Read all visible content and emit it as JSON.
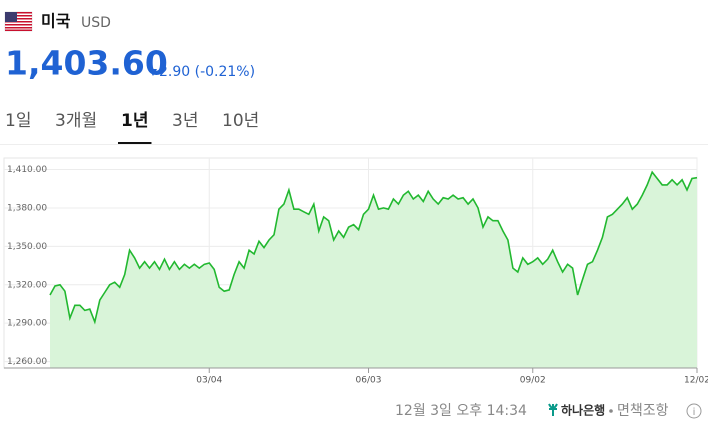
{
  "header": {
    "country": "미국",
    "currency": "USD",
    "price": "1,403.60",
    "change": "2.90 (-0.21%)"
  },
  "tabs": [
    "1일",
    "3개월",
    "1년",
    "3년",
    "10년"
  ],
  "active_tab": 2,
  "chart_data": {
    "type": "area",
    "values": [
      1312,
      1319,
      1320,
      1315,
      1294,
      1304,
      1304,
      1300,
      1301,
      1291,
      1308,
      1314,
      1320,
      1322,
      1318,
      1328,
      1347,
      1341,
      1333,
      1338,
      1333,
      1338,
      1332,
      1340,
      1332,
      1338,
      1332,
      1336,
      1333,
      1336,
      1333,
      1336,
      1337,
      1332,
      1318,
      1315,
      1316,
      1328,
      1338,
      1333,
      1347,
      1344,
      1354,
      1349,
      1355,
      1359,
      1379,
      1383,
      1394,
      1379,
      1379,
      1377,
      1375,
      1383,
      1362,
      1373,
      1370,
      1355,
      1362,
      1357,
      1365,
      1367,
      1363,
      1375,
      1379,
      1390,
      1379,
      1380,
      1379,
      1387,
      1383,
      1390,
      1393,
      1387,
      1390,
      1385,
      1393,
      1387,
      1383,
      1388,
      1387,
      1390,
      1387,
      1388,
      1383,
      1387,
      1380,
      1365,
      1373,
      1370,
      1370,
      1362,
      1355,
      1333,
      1330,
      1341,
      1336,
      1338,
      1341,
      1336,
      1340,
      1347,
      1338,
      1330,
      1336,
      1333,
      1312,
      1324,
      1336,
      1338,
      1347,
      1357,
      1373,
      1375,
      1379,
      1383,
      1388,
      1379,
      1383,
      1390,
      1398,
      1408,
      1403,
      1398,
      1398,
      1402,
      1398,
      1402,
      1394,
      1403,
      1403.6
    ],
    "color": "#22b830",
    "fill": "#d9f4d9",
    "xlim": [
      0,
      130
    ],
    "xticks": [
      {
        "value": 32,
        "label": "03/04"
      },
      {
        "value": 64,
        "label": "06/03"
      },
      {
        "value": 97,
        "label": "09/02"
      },
      {
        "value": 130,
        "label": "12/02"
      }
    ],
    "ylim": [
      1255,
      1419
    ],
    "yticks": [
      {
        "value": 1260,
        "label": "1,260.00"
      },
      {
        "value": 1290,
        "label": "1,290.00"
      },
      {
        "value": 1320,
        "label": "1,320.00"
      },
      {
        "value": 1350,
        "label": "1,350.00"
      },
      {
        "value": 1380,
        "label": "1,380.00"
      },
      {
        "value": 1410,
        "label": "1,410.00"
      }
    ],
    "grid": true
  },
  "footer": {
    "timestamp": "12월 3일 오후 14:34",
    "bank": "하나은행",
    "disclaimer": "면책조항"
  }
}
